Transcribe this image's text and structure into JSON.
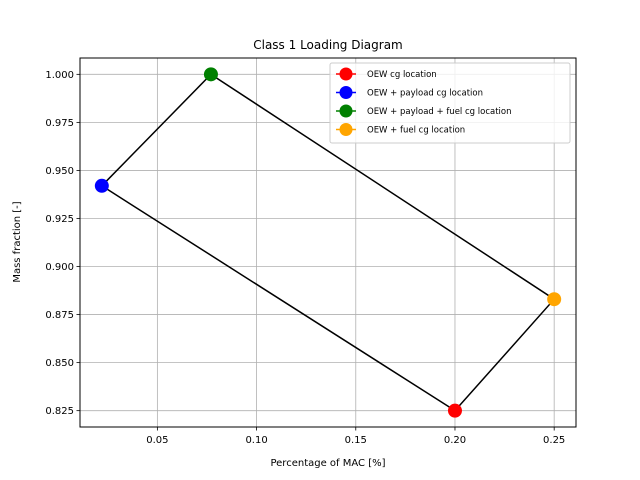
{
  "chart_data": {
    "type": "scatter",
    "title": "Class 1 Loading Diagram",
    "xlabel": "Percentage of MAC [%]",
    "ylabel": "Mass fraction [-]",
    "xlim": [
      0.011,
      0.261
    ],
    "ylim": [
      0.8165,
      1.0085
    ],
    "x_ticks": [
      0.05,
      0.1,
      0.15,
      0.2,
      0.25
    ],
    "x_tick_labels": [
      "0.05",
      "0.10",
      "0.15",
      "0.20",
      "0.25"
    ],
    "y_ticks": [
      0.825,
      0.85,
      0.875,
      0.9,
      0.925,
      0.95,
      0.975,
      1.0
    ],
    "y_tick_labels": [
      "0.825",
      "0.850",
      "0.875",
      "0.900",
      "0.925",
      "0.950",
      "0.975",
      "1.000"
    ],
    "grid": true,
    "legend_position": "top-right",
    "envelope_color": "#000000",
    "envelope_order": [
      0,
      3,
      2,
      1,
      0
    ],
    "series": [
      {
        "name": "OEW cg location",
        "color": "#ff0000",
        "x": [
          0.2
        ],
        "y": [
          0.825
        ]
      },
      {
        "name": "OEW + payload cg location",
        "color": "#0000ff",
        "x": [
          0.022
        ],
        "y": [
          0.942
        ]
      },
      {
        "name": "OEW + payload + fuel cg location",
        "color": "#008000",
        "x": [
          0.077
        ],
        "y": [
          1.0
        ]
      },
      {
        "name": "OEW + fuel cg location",
        "color": "#ffa500",
        "x": [
          0.25
        ],
        "y": [
          0.883
        ]
      }
    ]
  }
}
